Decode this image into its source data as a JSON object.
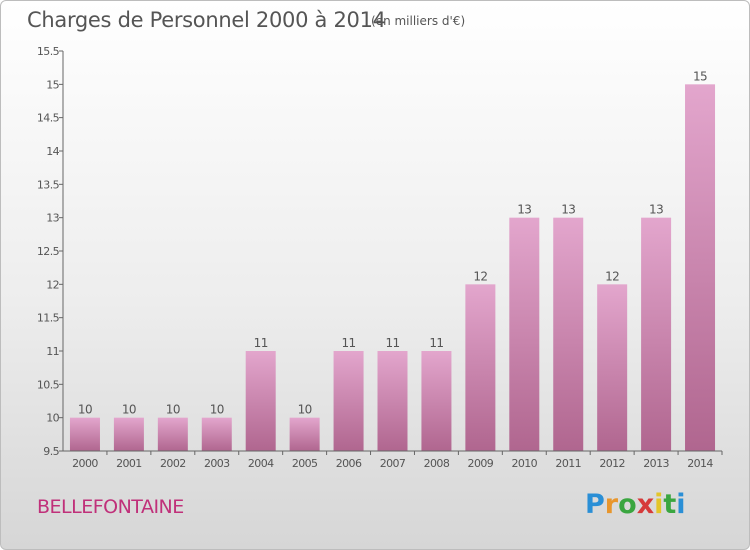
{
  "title": "Charges de Personnel 2000 à 2014",
  "unit_note": "(en milliers d'€)",
  "commune": "BELLEFONTAINE",
  "logo": {
    "text": "Proxiti",
    "letters": [
      "P",
      "r",
      "o",
      "x",
      "i",
      "t",
      "i"
    ]
  },
  "colors": {
    "bar_top": "#e3a6cd",
    "bar_bottom": "#b0668f",
    "commune_text": "#c0307a",
    "axis": "#666666"
  },
  "chart_data": {
    "type": "bar",
    "categories": [
      "2000",
      "2001",
      "2002",
      "2003",
      "2004",
      "2005",
      "2006",
      "2007",
      "2008",
      "2009",
      "2010",
      "2011",
      "2012",
      "2013",
      "2014"
    ],
    "values": [
      10,
      10,
      10,
      10,
      11,
      10,
      11,
      11,
      11,
      12,
      13,
      13,
      12,
      13,
      15
    ],
    "value_labels": [
      "10",
      "10",
      "10",
      "10",
      "11",
      "10",
      "11",
      "11",
      "11",
      "12",
      "13",
      "13",
      "12",
      "13",
      "15"
    ],
    "ylim": [
      9.5,
      15.5
    ],
    "yticks": [
      "9.5",
      "10",
      "10.5",
      "11",
      "11.5",
      "12",
      "12.5",
      "13",
      "13.5",
      "14",
      "14.5",
      "15",
      "15.5"
    ],
    "grid": false,
    "legend": "none"
  }
}
